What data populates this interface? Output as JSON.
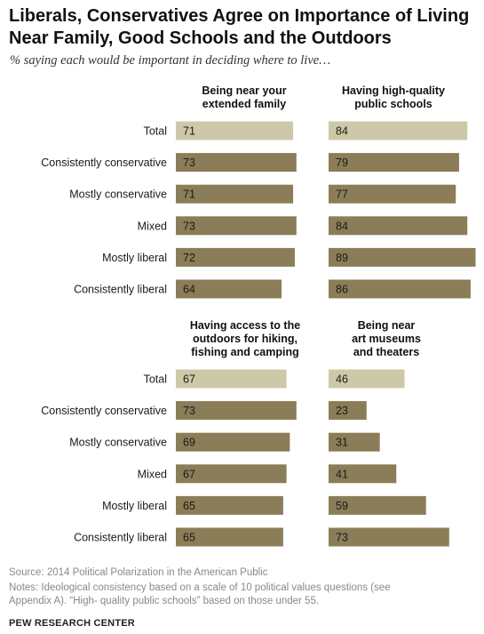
{
  "title": "Liberals, Conservatives Agree on Importance of Living Near Family, Good Schools and the Outdoors",
  "subtitle": "% saying each would be important in deciding where to live…",
  "source": "Source: 2014 Political Polarization in the American Public",
  "notes": "Notes: Ideological consistency based on a scale of 10 political values questions (see Appendix A). “High- quality public schools” based on those under 55.",
  "brand": "PEW RESEARCH CENTER",
  "colors": {
    "total": "#cdc9a8",
    "group": "#8b7d57",
    "label_text": "#1a1a1a"
  },
  "chart_data": [
    {
      "type": "bar",
      "orientation": "horizontal",
      "title": "Being near your extended family",
      "categories": [
        "Total",
        "Consistently conservative",
        "Mostly conservative",
        "Mixed",
        "Mostly liberal",
        "Consistently liberal"
      ],
      "values": [
        71,
        73,
        71,
        73,
        72,
        64
      ]
    },
    {
      "type": "bar",
      "orientation": "horizontal",
      "title": "Having high-quality public schools",
      "categories": [
        "Total",
        "Consistently conservative",
        "Mostly conservative",
        "Mixed",
        "Mostly liberal",
        "Consistently liberal"
      ],
      "values": [
        84,
        79,
        77,
        84,
        89,
        86
      ]
    },
    {
      "type": "bar",
      "orientation": "horizontal",
      "title": "Having access to the outdoors for hiking, fishing and camping",
      "categories": [
        "Total",
        "Consistently conservative",
        "Mostly conservative",
        "Mixed",
        "Mostly liberal",
        "Consistently liberal"
      ],
      "values": [
        67,
        73,
        69,
        67,
        65,
        65
      ]
    },
    {
      "type": "bar",
      "orientation": "horizontal",
      "title": "Being near art museums and theaters",
      "categories": [
        "Total",
        "Consistently conservative",
        "Mostly conservative",
        "Mixed",
        "Mostly liberal",
        "Consistently liberal"
      ],
      "values": [
        46,
        23,
        31,
        41,
        59,
        73
      ]
    }
  ]
}
